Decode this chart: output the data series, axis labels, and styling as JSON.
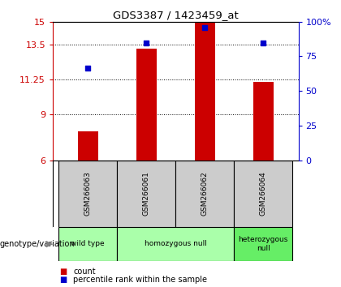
{
  "title": "GDS3387 / 1423459_at",
  "samples": [
    "GSM266063",
    "GSM266061",
    "GSM266062",
    "GSM266064"
  ],
  "bar_values": [
    7.9,
    13.25,
    14.9,
    11.1
  ],
  "dot_percentiles": [
    0.665,
    0.845,
    0.955,
    0.845
  ],
  "ylim_left": [
    6,
    15
  ],
  "ylim_right": [
    0,
    100
  ],
  "yticks_left": [
    6,
    9,
    11.25,
    13.5,
    15
  ],
  "yticks_right": [
    0,
    25,
    50,
    75,
    100
  ],
  "ytick_labels_left": [
    "6",
    "9",
    "11.25",
    "13.5",
    "15"
  ],
  "ytick_labels_right": [
    "0",
    "25",
    "50",
    "75",
    "100%"
  ],
  "bar_color": "#cc0000",
  "dot_color": "#0000cc",
  "bar_width": 0.35,
  "group_spans": [
    {
      "start": 0,
      "end": 1,
      "label": "wild type",
      "color": "#aaffaa"
    },
    {
      "start": 1,
      "end": 3,
      "label": "homozygous null",
      "color": "#aaffaa"
    },
    {
      "start": 3,
      "end": 4,
      "label": "heterozygous\nnull",
      "color": "#66ee66"
    }
  ],
  "sample_bg_color": "#cccccc",
  "legend_count_color": "#cc0000",
  "legend_dot_color": "#0000cc",
  "genotype_label": "genotype/variation",
  "legend_count_label": "count",
  "legend_percentile_label": "percentile rank within the sample",
  "hgrid_values": [
    9,
    11.25,
    13.5
  ]
}
